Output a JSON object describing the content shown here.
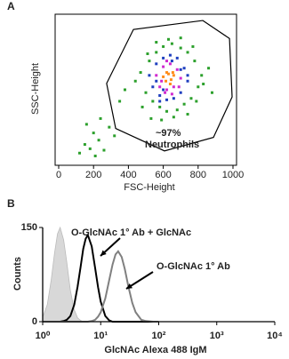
{
  "chart_data": [
    {
      "type": "scatter",
      "panel": "A",
      "x_label": "FSC-Height",
      "y_label": "SSC-Height",
      "xlim": [
        0,
        1000
      ],
      "ylim": [
        0,
        1000
      ],
      "xticks": [
        0,
        200,
        400,
        600,
        800,
        1000
      ],
      "annotations": [
        "~97%",
        "Neutrophils"
      ],
      "gate": {
        "x": [
          275,
          429,
          827,
          980,
          995,
          888,
          607,
          327
        ],
        "y": [
          544,
          919,
          981,
          856,
          450,
          169,
          75,
          231
        ]
      },
      "series": [
        {
          "color": "#2ca02c",
          "x": [
            440,
            470,
            500,
            520,
            540,
            560,
            580,
            600,
            620,
            650,
            680,
            700,
            720,
            740,
            760,
            780,
            800,
            820,
            480,
            510,
            530,
            560,
            590,
            630,
            660,
            700,
            740,
            770,
            790,
            830,
            120,
            150,
            180,
            200,
            230,
            260,
            290,
            320,
            160,
            210,
            240,
            350,
            380,
            860,
            880
          ],
          "y": [
            560,
            620,
            480,
            700,
            420,
            760,
            380,
            800,
            350,
            820,
            360,
            790,
            400,
            760,
            440,
            700,
            520,
            600,
            380,
            750,
            300,
            830,
            290,
            850,
            310,
            860,
            330,
            800,
            420,
            540,
            60,
            120,
            90,
            200,
            150,
            80,
            240,
            180,
            260,
            40,
            300,
            420,
            500,
            650,
            480
          ]
        },
        {
          "color": "#1f3fbf",
          "x": [
            520,
            540,
            560,
            580,
            600,
            620,
            640,
            660,
            680,
            700,
            720,
            740,
            560,
            600,
            650,
            700,
            740,
            580
          ],
          "y": [
            600,
            520,
            680,
            460,
            720,
            430,
            740,
            440,
            720,
            480,
            650,
            560,
            560,
            500,
            700,
            640,
            600,
            420
          ]
        },
        {
          "color": "#d02ad0",
          "x": [
            560,
            580,
            600,
            620,
            640,
            660,
            680,
            700,
            590,
            620,
            650,
            690,
            610
          ],
          "y": [
            600,
            520,
            660,
            500,
            680,
            520,
            640,
            580,
            560,
            700,
            470,
            520,
            480
          ]
        },
        {
          "color": "#ff8c1a",
          "x": [
            600,
            615,
            630,
            645,
            660,
            620,
            640,
            655
          ],
          "y": [
            590,
            560,
            610,
            570,
            600,
            620,
            540,
            620
          ]
        }
      ]
    },
    {
      "type": "line",
      "panel": "B",
      "x_label": "GlcNAc Alexa 488 IgM",
      "y_label": "Counts",
      "log_x": true,
      "xlim": [
        1,
        10000
      ],
      "ylim": [
        0,
        150
      ],
      "xticks": [
        {
          "value": 1,
          "label": "10⁰"
        },
        {
          "value": 10,
          "label": "10¹"
        },
        {
          "value": 100,
          "label": "10²"
        },
        {
          "value": 1000,
          "label": "10³"
        },
        {
          "value": 10000,
          "label": "10⁴"
        }
      ],
      "yticks": [
        0,
        150
      ],
      "x": [
        1,
        1.2,
        1.4,
        1.6,
        1.8,
        2,
        2.3,
        2.6,
        3,
        3.5,
        4,
        4.5,
        5,
        5.5,
        6,
        7,
        8,
        9,
        10,
        12,
        14,
        16,
        18,
        20,
        23,
        26,
        30,
        35,
        40,
        50,
        60,
        80,
        100
      ],
      "series": [
        {
          "color": "#d8d8d8",
          "fill": true,
          "values": [
            7,
            27,
            66,
            109,
            140,
            150,
            130,
            95,
            50,
            19,
            6,
            2,
            0,
            0,
            0,
            0,
            0,
            0,
            0,
            0,
            0,
            0,
            0,
            0,
            0,
            0,
            0,
            0,
            0,
            0,
            0,
            0,
            0
          ]
        },
        {
          "color": "#000000",
          "name": "O-GlcNAc 1° Ab + GlcNAc",
          "values": [
            0,
            0,
            0,
            0,
            0,
            0,
            1,
            3,
            9,
            27,
            56,
            87,
            116,
            132,
            138,
            120,
            86,
            55,
            32,
            9,
            2,
            0,
            0,
            0,
            0,
            0,
            0,
            0,
            0,
            0,
            0,
            0,
            0
          ]
        },
        {
          "color": "#808080",
          "name": "O-GlcNAc 1° Ab",
          "values": [
            0,
            0,
            0,
            0,
            0,
            0,
            0,
            0,
            0,
            0,
            0,
            0,
            0,
            0,
            0,
            1,
            3,
            8,
            15,
            37,
            66,
            91,
            107,
            112,
            103,
            84,
            56,
            30,
            15,
            3,
            1,
            0,
            0
          ]
        }
      ]
    }
  ]
}
